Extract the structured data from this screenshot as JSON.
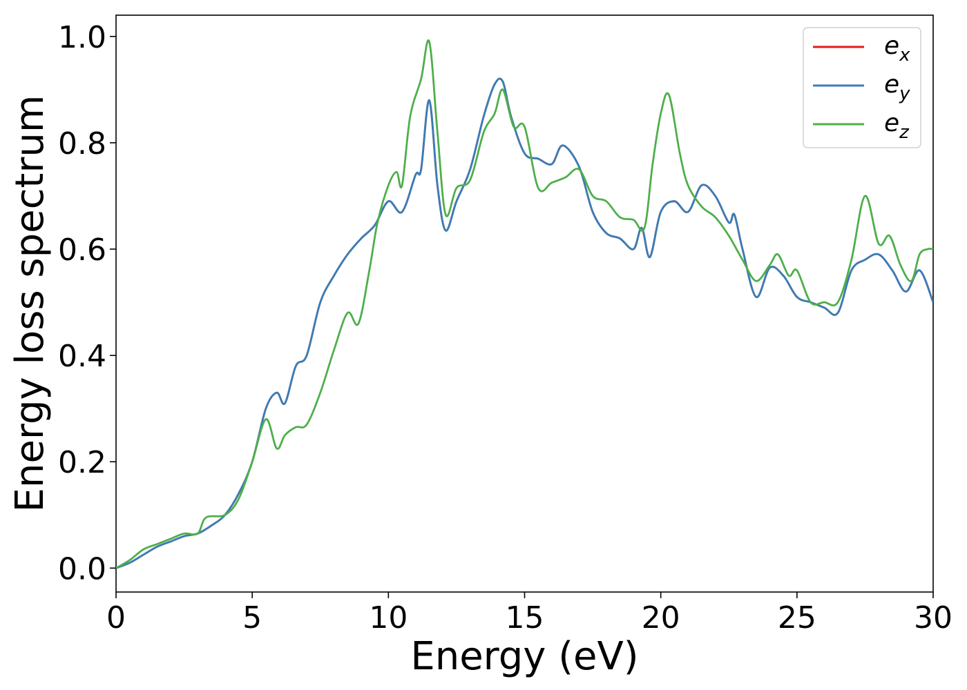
{
  "chart_data": {
    "type": "line",
    "title": "",
    "xlabel": "Energy (eV)",
    "ylabel": "Energy loss spectrum",
    "xlim": [
      0,
      30
    ],
    "ylim": [
      -0.045,
      1.04
    ],
    "xticks": [
      0,
      5,
      10,
      15,
      20,
      25,
      30
    ],
    "xtick_labels": [
      "0",
      "5",
      "10",
      "15",
      "20",
      "25",
      "30"
    ],
    "yticks": [
      0.0,
      0.2,
      0.4,
      0.6,
      0.8,
      1.0
    ],
    "ytick_labels": [
      "0.0",
      "0.2",
      "0.4",
      "0.6",
      "0.8",
      "1.0"
    ],
    "grid": false,
    "legend_position": "top-right",
    "series": [
      {
        "name": "e",
        "subscript": "x",
        "color": "#e41a1c",
        "points": [
          [
            0,
            0.0
          ],
          [
            0.5,
            0.01
          ],
          [
            1,
            0.025
          ],
          [
            1.5,
            0.04
          ],
          [
            2,
            0.05
          ],
          [
            2.5,
            0.06
          ],
          [
            3,
            0.065
          ],
          [
            3.5,
            0.08
          ],
          [
            4,
            0.1
          ],
          [
            4.5,
            0.14
          ],
          [
            5,
            0.2
          ],
          [
            5.5,
            0.3
          ],
          [
            5.9,
            0.33
          ],
          [
            6.2,
            0.31
          ],
          [
            6.6,
            0.38
          ],
          [
            7,
            0.4
          ],
          [
            7.5,
            0.5
          ],
          [
            8,
            0.55
          ],
          [
            8.5,
            0.59
          ],
          [
            9,
            0.62
          ],
          [
            9.5,
            0.645
          ],
          [
            10,
            0.69
          ],
          [
            10.5,
            0.67
          ],
          [
            11,
            0.74
          ],
          [
            11.2,
            0.75
          ],
          [
            11.5,
            0.88
          ],
          [
            11.8,
            0.72
          ],
          [
            12.1,
            0.635
          ],
          [
            12.5,
            0.69
          ],
          [
            13,
            0.75
          ],
          [
            13.5,
            0.85
          ],
          [
            13.9,
            0.91
          ],
          [
            14.2,
            0.915
          ],
          [
            14.5,
            0.85
          ],
          [
            15,
            0.78
          ],
          [
            15.5,
            0.77
          ],
          [
            16,
            0.76
          ],
          [
            16.4,
            0.795
          ],
          [
            17,
            0.755
          ],
          [
            17.5,
            0.67
          ],
          [
            18,
            0.63
          ],
          [
            18.5,
            0.62
          ],
          [
            19,
            0.6
          ],
          [
            19.3,
            0.64
          ],
          [
            19.6,
            0.585
          ],
          [
            20,
            0.67
          ],
          [
            20.5,
            0.69
          ],
          [
            21,
            0.67
          ],
          [
            21.5,
            0.72
          ],
          [
            22,
            0.7
          ],
          [
            22.5,
            0.65
          ],
          [
            22.7,
            0.665
          ],
          [
            23,
            0.6
          ],
          [
            23.5,
            0.51
          ],
          [
            24,
            0.565
          ],
          [
            24.5,
            0.55
          ],
          [
            25,
            0.51
          ],
          [
            25.5,
            0.5
          ],
          [
            26,
            0.49
          ],
          [
            26.5,
            0.48
          ],
          [
            27,
            0.56
          ],
          [
            27.5,
            0.58
          ],
          [
            28,
            0.59
          ],
          [
            28.5,
            0.56
          ],
          [
            29,
            0.52
          ],
          [
            29.5,
            0.56
          ],
          [
            30,
            0.5
          ]
        ]
      },
      {
        "name": "e",
        "subscript": "y",
        "color": "#377eb8",
        "points": [
          [
            0,
            0.0
          ],
          [
            0.5,
            0.01
          ],
          [
            1,
            0.025
          ],
          [
            1.5,
            0.04
          ],
          [
            2,
            0.05
          ],
          [
            2.5,
            0.06
          ],
          [
            3,
            0.065
          ],
          [
            3.5,
            0.08
          ],
          [
            4,
            0.1
          ],
          [
            4.5,
            0.14
          ],
          [
            5,
            0.2
          ],
          [
            5.5,
            0.3
          ],
          [
            5.9,
            0.33
          ],
          [
            6.2,
            0.31
          ],
          [
            6.6,
            0.38
          ],
          [
            7,
            0.4
          ],
          [
            7.5,
            0.5
          ],
          [
            8,
            0.55
          ],
          [
            8.5,
            0.59
          ],
          [
            9,
            0.62
          ],
          [
            9.5,
            0.645
          ],
          [
            10,
            0.69
          ],
          [
            10.5,
            0.67
          ],
          [
            11,
            0.74
          ],
          [
            11.2,
            0.75
          ],
          [
            11.5,
            0.88
          ],
          [
            11.8,
            0.72
          ],
          [
            12.1,
            0.635
          ],
          [
            12.5,
            0.69
          ],
          [
            13,
            0.75
          ],
          [
            13.5,
            0.85
          ],
          [
            13.9,
            0.91
          ],
          [
            14.2,
            0.915
          ],
          [
            14.5,
            0.85
          ],
          [
            15,
            0.78
          ],
          [
            15.5,
            0.77
          ],
          [
            16,
            0.76
          ],
          [
            16.4,
            0.795
          ],
          [
            17,
            0.755
          ],
          [
            17.5,
            0.67
          ],
          [
            18,
            0.63
          ],
          [
            18.5,
            0.62
          ],
          [
            19,
            0.6
          ],
          [
            19.3,
            0.64
          ],
          [
            19.6,
            0.585
          ],
          [
            20,
            0.67
          ],
          [
            20.5,
            0.69
          ],
          [
            21,
            0.67
          ],
          [
            21.5,
            0.72
          ],
          [
            22,
            0.7
          ],
          [
            22.5,
            0.65
          ],
          [
            22.7,
            0.665
          ],
          [
            23,
            0.6
          ],
          [
            23.5,
            0.51
          ],
          [
            24,
            0.565
          ],
          [
            24.5,
            0.55
          ],
          [
            25,
            0.51
          ],
          [
            25.5,
            0.5
          ],
          [
            26,
            0.49
          ],
          [
            26.5,
            0.48
          ],
          [
            27,
            0.56
          ],
          [
            27.5,
            0.58
          ],
          [
            28,
            0.59
          ],
          [
            28.5,
            0.56
          ],
          [
            29,
            0.52
          ],
          [
            29.5,
            0.56
          ],
          [
            30,
            0.5
          ]
        ]
      },
      {
        "name": "e",
        "subscript": "z",
        "color": "#4daf4a",
        "points": [
          [
            0,
            0.0
          ],
          [
            0.5,
            0.015
          ],
          [
            1,
            0.035
          ],
          [
            1.5,
            0.045
          ],
          [
            2,
            0.055
          ],
          [
            2.5,
            0.065
          ],
          [
            3,
            0.065
          ],
          [
            3.3,
            0.095
          ],
          [
            4,
            0.1
          ],
          [
            4.5,
            0.13
          ],
          [
            5,
            0.2
          ],
          [
            5.5,
            0.28
          ],
          [
            5.9,
            0.225
          ],
          [
            6.2,
            0.25
          ],
          [
            6.6,
            0.265
          ],
          [
            7,
            0.27
          ],
          [
            7.5,
            0.33
          ],
          [
            8,
            0.41
          ],
          [
            8.5,
            0.48
          ],
          [
            8.9,
            0.46
          ],
          [
            9.3,
            0.56
          ],
          [
            9.6,
            0.65
          ],
          [
            10,
            0.72
          ],
          [
            10.3,
            0.745
          ],
          [
            10.5,
            0.72
          ],
          [
            10.8,
            0.85
          ],
          [
            11.2,
            0.92
          ],
          [
            11.5,
            0.99
          ],
          [
            11.8,
            0.82
          ],
          [
            12.1,
            0.665
          ],
          [
            12.5,
            0.715
          ],
          [
            13,
            0.73
          ],
          [
            13.5,
            0.82
          ],
          [
            13.9,
            0.855
          ],
          [
            14.2,
            0.9
          ],
          [
            14.6,
            0.83
          ],
          [
            15,
            0.83
          ],
          [
            15.5,
            0.715
          ],
          [
            16,
            0.725
          ],
          [
            16.5,
            0.735
          ],
          [
            17,
            0.75
          ],
          [
            17.5,
            0.7
          ],
          [
            18,
            0.69
          ],
          [
            18.5,
            0.66
          ],
          [
            19,
            0.655
          ],
          [
            19.4,
            0.64
          ],
          [
            19.7,
            0.76
          ],
          [
            20,
            0.855
          ],
          [
            20.3,
            0.89
          ],
          [
            20.7,
            0.78
          ],
          [
            21,
            0.72
          ],
          [
            21.5,
            0.68
          ],
          [
            22,
            0.66
          ],
          [
            22.5,
            0.625
          ],
          [
            23,
            0.58
          ],
          [
            23.5,
            0.54
          ],
          [
            24,
            0.57
          ],
          [
            24.3,
            0.59
          ],
          [
            24.7,
            0.55
          ],
          [
            25,
            0.56
          ],
          [
            25.5,
            0.5
          ],
          [
            26,
            0.5
          ],
          [
            26.5,
            0.5
          ],
          [
            27,
            0.58
          ],
          [
            27.5,
            0.7
          ],
          [
            28,
            0.61
          ],
          [
            28.4,
            0.625
          ],
          [
            28.8,
            0.57
          ],
          [
            29.2,
            0.54
          ],
          [
            29.5,
            0.59
          ],
          [
            29.8,
            0.6
          ],
          [
            30,
            0.6
          ]
        ]
      }
    ]
  }
}
